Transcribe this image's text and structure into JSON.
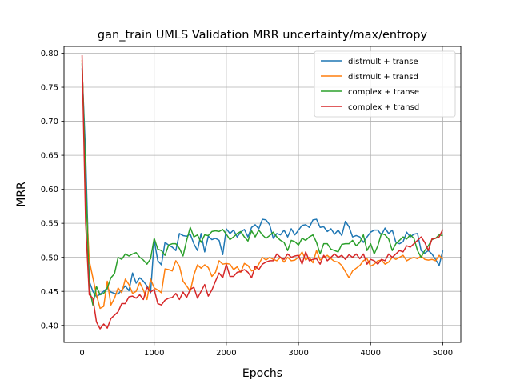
{
  "chart_data": {
    "type": "line",
    "title": "gan_train UMLS Validation MRR uncertainty/max/entropy",
    "xlabel": "Epochs",
    "ylabel": "MRR",
    "xlim": [
      -250,
      5250
    ],
    "ylim": [
      0.375,
      0.81
    ],
    "xticks": [
      0,
      1000,
      2000,
      3000,
      4000,
      5000
    ],
    "xtick_labels": [
      "0",
      "1000",
      "2000",
      "3000",
      "4000",
      "5000"
    ],
    "yticks": [
      0.4,
      0.45,
      0.5,
      0.55,
      0.6,
      0.65,
      0.7,
      0.75,
      0.8
    ],
    "ytick_labels": [
      "0.40",
      "0.45",
      "0.50",
      "0.55",
      "0.60",
      "0.65",
      "0.70",
      "0.75",
      "0.80"
    ],
    "grid": true,
    "legend_position": "top-right",
    "series": [
      {
        "name": "distmult + transe",
        "color": "#1f77b4",
        "x": [
          0,
          50,
          100,
          150,
          200,
          250,
          300,
          350,
          400,
          450,
          500,
          550,
          600,
          650,
          700,
          750,
          800,
          850,
          900,
          950,
          1000,
          1050,
          1100,
          1150,
          1200,
          1250,
          1300,
          1350,
          1400,
          1450,
          1500,
          1550,
          1600,
          1650,
          1700,
          1750,
          1800,
          1850,
          1900,
          1950,
          2000,
          2050,
          2100,
          2150,
          2200,
          2250,
          2300,
          2350,
          2400,
          2450,
          2500,
          2550,
          2600,
          2650,
          2700,
          2750,
          2800,
          2850,
          2900,
          2950,
          3000,
          3050,
          3100,
          3150,
          3200,
          3250,
          3300,
          3350,
          3400,
          3450,
          3500,
          3550,
          3600,
          3650,
          3700,
          3750,
          3800,
          3850,
          3900,
          3950,
          4000,
          4050,
          4100,
          4150,
          4200,
          4250,
          4300,
          4350,
          4400,
          4450,
          4500,
          4550,
          4600,
          4650,
          4700,
          4750,
          4800,
          4850,
          4900,
          4950,
          5000
        ],
        "y": [
          0.778,
          0.65,
          0.465,
          0.45,
          0.442,
          0.446,
          0.45,
          0.455,
          0.449,
          0.447,
          0.446,
          0.452,
          0.458,
          0.451,
          0.477,
          0.462,
          0.47,
          0.465,
          0.458,
          0.448,
          0.525,
          0.495,
          0.489,
          0.522,
          0.518,
          0.515,
          0.51,
          0.535,
          0.532,
          0.531,
          0.534,
          0.52,
          0.51,
          0.535,
          0.508,
          0.531,
          0.526,
          0.528,
          0.525,
          0.504,
          0.542,
          0.535,
          0.54,
          0.53,
          0.537,
          0.541,
          0.53,
          0.544,
          0.548,
          0.542,
          0.556,
          0.555,
          0.548,
          0.528,
          0.535,
          0.533,
          0.54,
          0.53,
          0.542,
          0.533,
          0.54,
          0.547,
          0.548,
          0.544,
          0.555,
          0.556,
          0.544,
          0.545,
          0.538,
          0.542,
          0.534,
          0.54,
          0.532,
          0.553,
          0.545,
          0.53,
          0.532,
          0.53,
          0.522,
          0.53,
          0.537,
          0.54,
          0.54,
          0.533,
          0.543,
          0.535,
          0.54,
          0.522,
          0.52,
          0.523,
          0.537,
          0.53,
          0.534,
          0.535,
          0.51,
          0.506,
          0.51,
          0.505,
          0.497,
          0.488,
          0.51
        ]
      },
      {
        "name": "distmult + transd",
        "color": "#ff7f0e",
        "x": [
          0,
          50,
          100,
          150,
          200,
          250,
          300,
          350,
          400,
          450,
          500,
          550,
          600,
          650,
          700,
          750,
          800,
          850,
          900,
          950,
          1000,
          1050,
          1100,
          1150,
          1200,
          1250,
          1300,
          1350,
          1400,
          1450,
          1500,
          1550,
          1600,
          1650,
          1700,
          1750,
          1800,
          1850,
          1900,
          1950,
          2000,
          2050,
          2100,
          2150,
          2200,
          2250,
          2300,
          2350,
          2400,
          2450,
          2500,
          2550,
          2600,
          2650,
          2700,
          2750,
          2800,
          2850,
          2900,
          2950,
          3000,
          3050,
          3100,
          3150,
          3200,
          3250,
          3300,
          3350,
          3400,
          3450,
          3500,
          3550,
          3600,
          3650,
          3700,
          3750,
          3800,
          3850,
          3900,
          3950,
          4000,
          4050,
          4100,
          4150,
          4200,
          4250,
          4300,
          4350,
          4400,
          4450,
          4500,
          4550,
          4600,
          4650,
          4700,
          4750,
          4800,
          4850,
          4900,
          4950,
          5000
        ],
        "y": [
          0.79,
          0.6,
          0.495,
          0.47,
          0.445,
          0.425,
          0.428,
          0.465,
          0.43,
          0.44,
          0.455,
          0.448,
          0.468,
          0.46,
          0.447,
          0.45,
          0.463,
          0.452,
          0.438,
          0.468,
          0.455,
          0.452,
          0.448,
          0.483,
          0.482,
          0.48,
          0.495,
          0.487,
          0.465,
          0.458,
          0.45,
          0.474,
          0.489,
          0.484,
          0.489,
          0.485,
          0.472,
          0.478,
          0.495,
          0.49,
          0.491,
          0.49,
          0.482,
          0.486,
          0.478,
          0.491,
          0.488,
          0.48,
          0.482,
          0.49,
          0.5,
          0.496,
          0.5,
          0.497,
          0.495,
          0.5,
          0.493,
          0.5,
          0.495,
          0.496,
          0.5,
          0.508,
          0.496,
          0.5,
          0.492,
          0.51,
          0.496,
          0.5,
          0.503,
          0.498,
          0.494,
          0.493,
          0.488,
          0.479,
          0.47,
          0.48,
          0.484,
          0.488,
          0.495,
          0.498,
          0.487,
          0.49,
          0.495,
          0.496,
          0.49,
          0.493,
          0.5,
          0.497,
          0.5,
          0.503,
          0.495,
          0.498,
          0.5,
          0.498,
          0.502,
          0.497,
          0.496,
          0.497,
          0.495,
          0.503,
          0.497
        ]
      },
      {
        "name": "complex + transe",
        "color": "#2ca02c",
        "x": [
          0,
          50,
          100,
          150,
          200,
          250,
          300,
          350,
          400,
          450,
          500,
          550,
          600,
          650,
          700,
          750,
          800,
          850,
          900,
          950,
          1000,
          1050,
          1100,
          1150,
          1200,
          1250,
          1300,
          1350,
          1400,
          1450,
          1500,
          1550,
          1600,
          1650,
          1700,
          1750,
          1800,
          1850,
          1900,
          1950,
          2000,
          2050,
          2100,
          2150,
          2200,
          2250,
          2300,
          2350,
          2400,
          2450,
          2500,
          2550,
          2600,
          2650,
          2700,
          2750,
          2800,
          2850,
          2900,
          2950,
          3000,
          3050,
          3100,
          3150,
          3200,
          3250,
          3300,
          3350,
          3400,
          3450,
          3500,
          3550,
          3600,
          3650,
          3700,
          3750,
          3800,
          3850,
          3900,
          3950,
          4000,
          4050,
          4100,
          4150,
          4200,
          4250,
          4300,
          4350,
          4400,
          4450,
          4500,
          4550,
          4600,
          4650,
          4700,
          4750,
          4800,
          4850,
          4900,
          4950,
          5000
        ],
        "y": [
          0.785,
          0.62,
          0.455,
          0.43,
          0.457,
          0.445,
          0.447,
          0.455,
          0.47,
          0.476,
          0.5,
          0.497,
          0.505,
          0.502,
          0.505,
          0.507,
          0.5,
          0.496,
          0.49,
          0.498,
          0.528,
          0.512,
          0.51,
          0.503,
          0.518,
          0.52,
          0.52,
          0.513,
          0.502,
          0.525,
          0.544,
          0.53,
          0.533,
          0.522,
          0.533,
          0.532,
          0.538,
          0.539,
          0.538,
          0.541,
          0.534,
          0.526,
          0.53,
          0.535,
          0.538,
          0.53,
          0.524,
          0.539,
          0.53,
          0.54,
          0.533,
          0.528,
          0.532,
          0.537,
          0.53,
          0.525,
          0.522,
          0.51,
          0.525,
          0.523,
          0.518,
          0.528,
          0.525,
          0.53,
          0.533,
          0.522,
          0.505,
          0.52,
          0.52,
          0.512,
          0.51,
          0.508,
          0.519,
          0.52,
          0.52,
          0.525,
          0.517,
          0.522,
          0.533,
          0.51,
          0.52,
          0.505,
          0.517,
          0.535,
          0.533,
          0.527,
          0.51,
          0.52,
          0.525,
          0.53,
          0.527,
          0.533,
          0.528,
          0.51,
          0.5,
          0.51,
          0.517,
          0.526,
          0.528,
          0.533,
          0.532
        ]
      },
      {
        "name": "complex + transd",
        "color": "#d62728",
        "x": [
          0,
          50,
          100,
          150,
          200,
          250,
          300,
          350,
          400,
          450,
          500,
          550,
          600,
          650,
          700,
          750,
          800,
          850,
          900,
          950,
          1000,
          1050,
          1100,
          1150,
          1200,
          1250,
          1300,
          1350,
          1400,
          1450,
          1500,
          1550,
          1600,
          1650,
          1700,
          1750,
          1800,
          1850,
          1900,
          1950,
          2000,
          2050,
          2100,
          2150,
          2200,
          2250,
          2300,
          2350,
          2400,
          2450,
          2500,
          2550,
          2600,
          2650,
          2700,
          2750,
          2800,
          2850,
          2900,
          2950,
          3000,
          3050,
          3100,
          3150,
          3200,
          3250,
          3300,
          3350,
          3400,
          3450,
          3500,
          3550,
          3600,
          3650,
          3700,
          3750,
          3800,
          3850,
          3900,
          3950,
          4000,
          4050,
          4100,
          4150,
          4200,
          4250,
          4300,
          4350,
          4400,
          4450,
          4500,
          4550,
          4600,
          4650,
          4700,
          4750,
          4800,
          4850,
          4900,
          4950,
          5000
        ],
        "y": [
          0.797,
          0.55,
          0.445,
          0.44,
          0.405,
          0.395,
          0.402,
          0.396,
          0.41,
          0.415,
          0.42,
          0.432,
          0.432,
          0.442,
          0.443,
          0.44,
          0.445,
          0.438,
          0.456,
          0.449,
          0.453,
          0.432,
          0.43,
          0.437,
          0.44,
          0.441,
          0.447,
          0.438,
          0.449,
          0.441,
          0.453,
          0.456,
          0.44,
          0.45,
          0.46,
          0.443,
          0.452,
          0.465,
          0.477,
          0.47,
          0.49,
          0.472,
          0.472,
          0.478,
          0.479,
          0.482,
          0.478,
          0.47,
          0.487,
          0.482,
          0.49,
          0.493,
          0.495,
          0.495,
          0.505,
          0.5,
          0.497,
          0.505,
          0.5,
          0.502,
          0.503,
          0.49,
          0.508,
          0.495,
          0.497,
          0.498,
          0.49,
          0.503,
          0.495,
          0.5,
          0.505,
          0.5,
          0.503,
          0.497,
          0.504,
          0.5,
          0.505,
          0.498,
          0.505,
          0.49,
          0.497,
          0.495,
          0.49,
          0.497,
          0.495,
          0.505,
          0.5,
          0.505,
          0.51,
          0.508,
          0.517,
          0.515,
          0.52,
          0.525,
          0.53,
          0.522,
          0.51,
          0.527,
          0.528,
          0.53,
          0.541
        ]
      }
    ]
  }
}
